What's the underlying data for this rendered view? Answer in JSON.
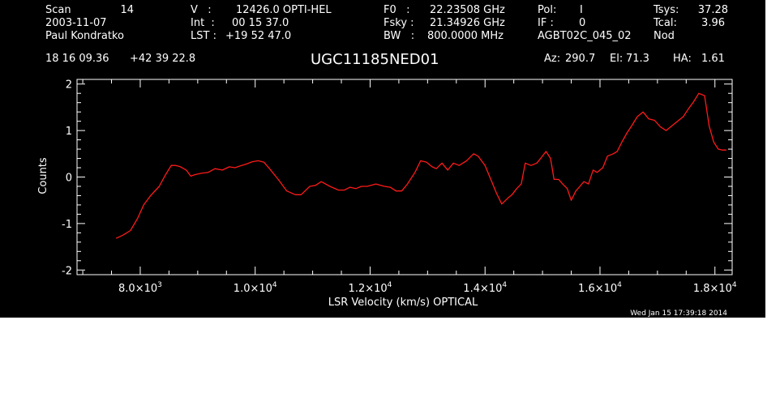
{
  "header": {
    "scan_label": "Scan",
    "scan_value": "14",
    "date": "2003-11-07",
    "observer": "Paul Kondratko",
    "v_label": "V   :",
    "v_value": "12426.0 OPTI-HEL",
    "int_label": "Int  :",
    "int_value": "00 15 37.0",
    "lst_label": "LST :",
    "lst_value": "+19 52 47.0",
    "f0_label": "F0   :",
    "f0_value": "22.23508 GHz",
    "fsky_label": "Fsky :",
    "fsky_value": "21.34926 GHz",
    "bw_label": "BW   :",
    "bw_value": "800.0000 MHz",
    "pol_label": "Pol:",
    "pol_value": "I",
    "if_label": "IF :",
    "if_value": "0",
    "project": "AGBT02C_045_02",
    "mode": "Nod",
    "tsys_label": "Tsys:",
    "tsys_value": "37.28",
    "tcal_label": "Tcal:",
    "tcal_value": "3.96",
    "ra": "18 16 09.36",
    "dec": "+42 39 22.8",
    "az_label": "Az:",
    "az_value": "290.7",
    "el_label": "El:",
    "el_value": "71.3",
    "ha_label": "HA:",
    "ha_value": "1.61"
  },
  "footer": {
    "timestamp": "Wed Jan 15 17:39:18 2014"
  },
  "colors": {
    "background": "#000000",
    "axes": "#ffffff",
    "trace": "#ff1a1a"
  },
  "chart_data": {
    "type": "line",
    "title": "UGC11185NED01",
    "xlabel": "LSR Velocity (km/s) OPTICAL",
    "ylabel": "Counts",
    "xlim": [
      6900,
      18300
    ],
    "ylim": [
      -2.1,
      2.1
    ],
    "x_ticks": [
      8000,
      10000,
      12000,
      14000,
      16000,
      18000
    ],
    "x_tick_labels": [
      {
        "mantissa": "8.0×10",
        "exp": "3"
      },
      {
        "mantissa": "1.0×10",
        "exp": "4"
      },
      {
        "mantissa": "1.2×10",
        "exp": "4"
      },
      {
        "mantissa": "1.4×10",
        "exp": "4"
      },
      {
        "mantissa": "1.6×10",
        "exp": "4"
      },
      {
        "mantissa": "1.8×10",
        "exp": "4"
      }
    ],
    "y_ticks": [
      -2,
      -1,
      0,
      1,
      2
    ],
    "y_tick_labels": [
      "-2",
      "-1",
      "0",
      "1",
      "2"
    ],
    "grid": false,
    "legend": "none",
    "series": [
      {
        "x": [
          7580,
          7700,
          7830,
          7950,
          8060,
          8180,
          8330,
          8440,
          8540,
          8620,
          8700,
          8800,
          8880,
          8950,
          9060,
          9180,
          9300,
          9430,
          9550,
          9650,
          9720,
          9850,
          9950,
          10050,
          10150,
          10250,
          10400,
          10550,
          10700,
          10800,
          10950,
          11050,
          11150,
          11300,
          11450,
          11550,
          11650,
          11750,
          11850,
          11950,
          12100,
          12250,
          12350,
          12450,
          12550,
          12650,
          12780,
          12880,
          12980,
          13080,
          13150,
          13250,
          13350,
          13450,
          13550,
          13680,
          13800,
          13880,
          14000,
          14100,
          14200,
          14290,
          14400,
          14470,
          14550,
          14630,
          14700,
          14800,
          14900,
          14980,
          15060,
          15140,
          15200,
          15280,
          15350,
          15430,
          15500,
          15580,
          15650,
          15720,
          15800,
          15880,
          15950,
          16050,
          16130,
          16230,
          16300,
          16380,
          16470,
          16550,
          16650,
          16750,
          16850,
          16950,
          17050,
          17150,
          17250,
          17350,
          17450,
          17530,
          17630,
          17720,
          17820,
          17900,
          17980,
          18060,
          18130,
          18200
        ],
        "y": [
          -1.32,
          -1.25,
          -1.15,
          -0.9,
          -0.6,
          -0.4,
          -0.2,
          0.05,
          0.25,
          0.25,
          0.22,
          0.15,
          0.02,
          0.05,
          0.08,
          0.1,
          0.18,
          0.15,
          0.22,
          0.2,
          0.23,
          0.28,
          0.33,
          0.35,
          0.32,
          0.18,
          -0.05,
          -0.3,
          -0.38,
          -0.38,
          -0.2,
          -0.18,
          -0.1,
          -0.2,
          -0.28,
          -0.28,
          -0.22,
          -0.25,
          -0.2,
          -0.2,
          -0.15,
          -0.2,
          -0.22,
          -0.3,
          -0.3,
          -0.15,
          0.1,
          0.35,
          0.32,
          0.22,
          0.18,
          0.3,
          0.15,
          0.3,
          0.25,
          0.35,
          0.5,
          0.45,
          0.25,
          -0.05,
          -0.35,
          -0.58,
          -0.45,
          -0.38,
          -0.25,
          -0.15,
          0.3,
          0.25,
          0.3,
          0.42,
          0.55,
          0.4,
          -0.05,
          -0.05,
          -0.15,
          -0.25,
          -0.5,
          -0.3,
          -0.2,
          -0.1,
          -0.15,
          0.15,
          0.1,
          0.2,
          0.45,
          0.5,
          0.55,
          0.75,
          0.95,
          1.1,
          1.3,
          1.4,
          1.25,
          1.22,
          1.08,
          1.0,
          1.1,
          1.2,
          1.3,
          1.45,
          1.62,
          1.8,
          1.75,
          1.1,
          0.75,
          0.6,
          0.58,
          0.58
        ]
      }
    ]
  }
}
